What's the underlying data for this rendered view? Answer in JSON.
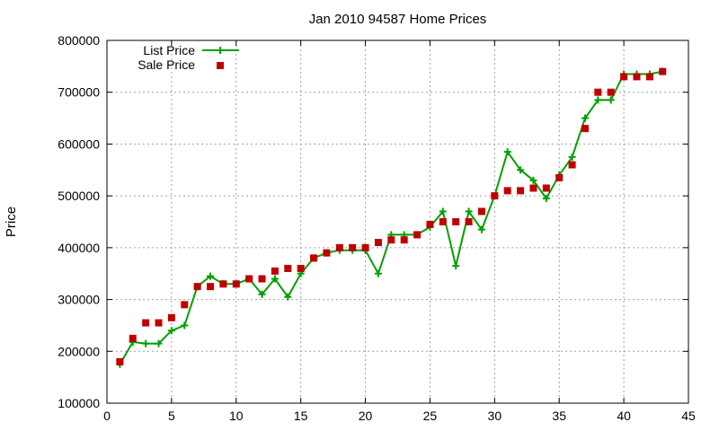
{
  "chart_data": {
    "type": "line",
    "title": "Jan 2010 94587 Home Prices",
    "xlabel": "",
    "ylabel": "Price",
    "xlim": [
      0,
      45
    ],
    "ylim": [
      100000,
      800000
    ],
    "x_ticks": [
      0,
      5,
      10,
      15,
      20,
      25,
      30,
      35,
      40,
      45
    ],
    "y_ticks": [
      100000,
      200000,
      300000,
      400000,
      500000,
      600000,
      700000,
      800000
    ],
    "grid": true,
    "legend_position": "top-left",
    "series": [
      {
        "name": "List Price",
        "style": "line-cross",
        "color": "#00a000",
        "x": [
          1,
          2,
          3,
          4,
          5,
          6,
          7,
          8,
          9,
          10,
          11,
          12,
          13,
          14,
          15,
          16,
          17,
          18,
          19,
          20,
          21,
          22,
          23,
          24,
          25,
          26,
          27,
          28,
          29,
          30,
          31,
          32,
          33,
          34,
          35,
          36,
          37,
          38,
          39,
          40,
          41,
          42,
          43
        ],
        "y": [
          175000,
          218000,
          215000,
          215000,
          240000,
          250000,
          325000,
          345000,
          330000,
          330000,
          340000,
          310000,
          340000,
          305000,
          350000,
          380000,
          390000,
          395000,
          395000,
          395000,
          350000,
          425000,
          425000,
          425000,
          440000,
          470000,
          365000,
          470000,
          435000,
          500000,
          585000,
          550000,
          530000,
          495000,
          540000,
          575000,
          650000,
          685000,
          685000,
          735000,
          735000,
          735000,
          740000
        ]
      },
      {
        "name": "Sale Price",
        "style": "square",
        "color": "#c00000",
        "x": [
          1,
          2,
          3,
          4,
          5,
          6,
          7,
          8,
          9,
          10,
          11,
          12,
          13,
          14,
          15,
          16,
          17,
          18,
          19,
          20,
          21,
          22,
          23,
          24,
          25,
          26,
          27,
          28,
          29,
          30,
          31,
          32,
          33,
          34,
          35,
          36,
          37,
          38,
          39,
          40,
          41,
          42,
          43
        ],
        "y": [
          180000,
          225000,
          255000,
          255000,
          265000,
          290000,
          325000,
          325000,
          330000,
          330000,
          340000,
          340000,
          355000,
          360000,
          360000,
          380000,
          390000,
          400000,
          400000,
          400000,
          410000,
          415000,
          415000,
          425000,
          445000,
          450000,
          450000,
          450000,
          470000,
          500000,
          510000,
          510000,
          515000,
          515000,
          535000,
          560000,
          630000,
          700000,
          700000,
          730000,
          730000,
          730000,
          740000
        ]
      }
    ]
  }
}
